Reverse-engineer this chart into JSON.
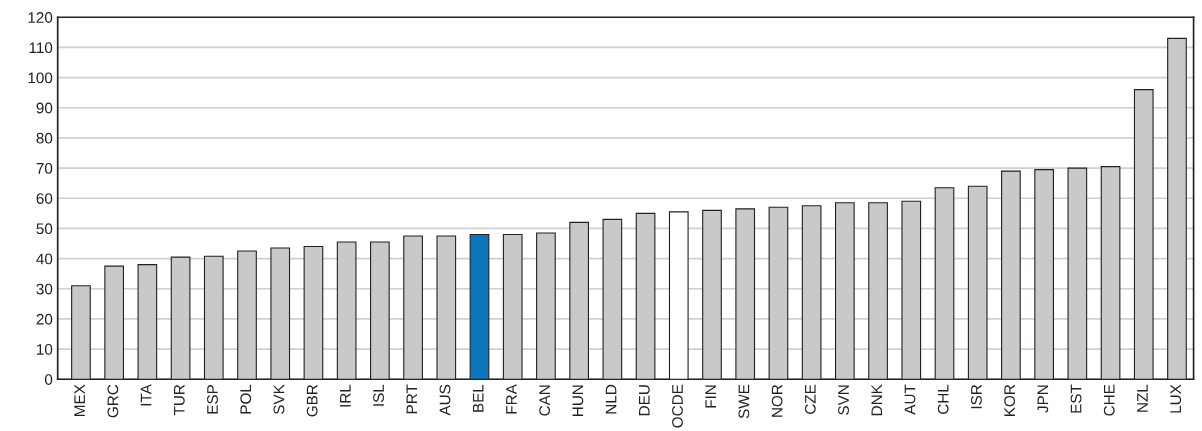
{
  "chart_data": {
    "type": "bar",
    "categories": [
      "MEX",
      "GRC",
      "ITA",
      "TUR",
      "ESP",
      "POL",
      "SVK",
      "GBR",
      "IRL",
      "ISL",
      "PRT",
      "AUS",
      "BEL",
      "FRA",
      "CAN",
      "HUN",
      "NLD",
      "DEU",
      "OCDE",
      "FIN",
      "SWE",
      "NOR",
      "CZE",
      "SVN",
      "DNK",
      "AUT",
      "CHL",
      "ISR",
      "KOR",
      "JPN",
      "EST",
      "CHE",
      "NZL",
      "LUX"
    ],
    "values": [
      31,
      37.5,
      38,
      40.5,
      40.8,
      42.5,
      43.5,
      44,
      45.5,
      45.5,
      47.5,
      47.5,
      48,
      48,
      48.5,
      52,
      53,
      55,
      55.5,
      56,
      56.5,
      57,
      57.5,
      58.5,
      58.5,
      59,
      63.5,
      64,
      69,
      69.5,
      70,
      70.5,
      96,
      113
    ],
    "colors": [
      "#c8c9cb",
      "#c8c9cb",
      "#c8c9cb",
      "#c8c9cb",
      "#c8c9cb",
      "#c8c9cb",
      "#c8c9cb",
      "#c8c9cb",
      "#c8c9cb",
      "#c8c9cb",
      "#c8c9cb",
      "#c8c9cb",
      "#0b75bc",
      "#c8c9cb",
      "#c8c9cb",
      "#c8c9cb",
      "#c8c9cb",
      "#c8c9cb",
      "#ffffff",
      "#c8c9cb",
      "#c8c9cb",
      "#c8c9cb",
      "#c8c9cb",
      "#c8c9cb",
      "#c8c9cb",
      "#c8c9cb",
      "#c8c9cb",
      "#c8c9cb",
      "#c8c9cb",
      "#c8c9cb",
      "#c8c9cb",
      "#c8c9cb",
      "#c8c9cb",
      "#c8c9cb"
    ],
    "ylim": [
      0,
      120
    ],
    "yticks": [
      0,
      10,
      20,
      30,
      40,
      50,
      60,
      70,
      80,
      90,
      100,
      110,
      120
    ],
    "grid": "y"
  }
}
